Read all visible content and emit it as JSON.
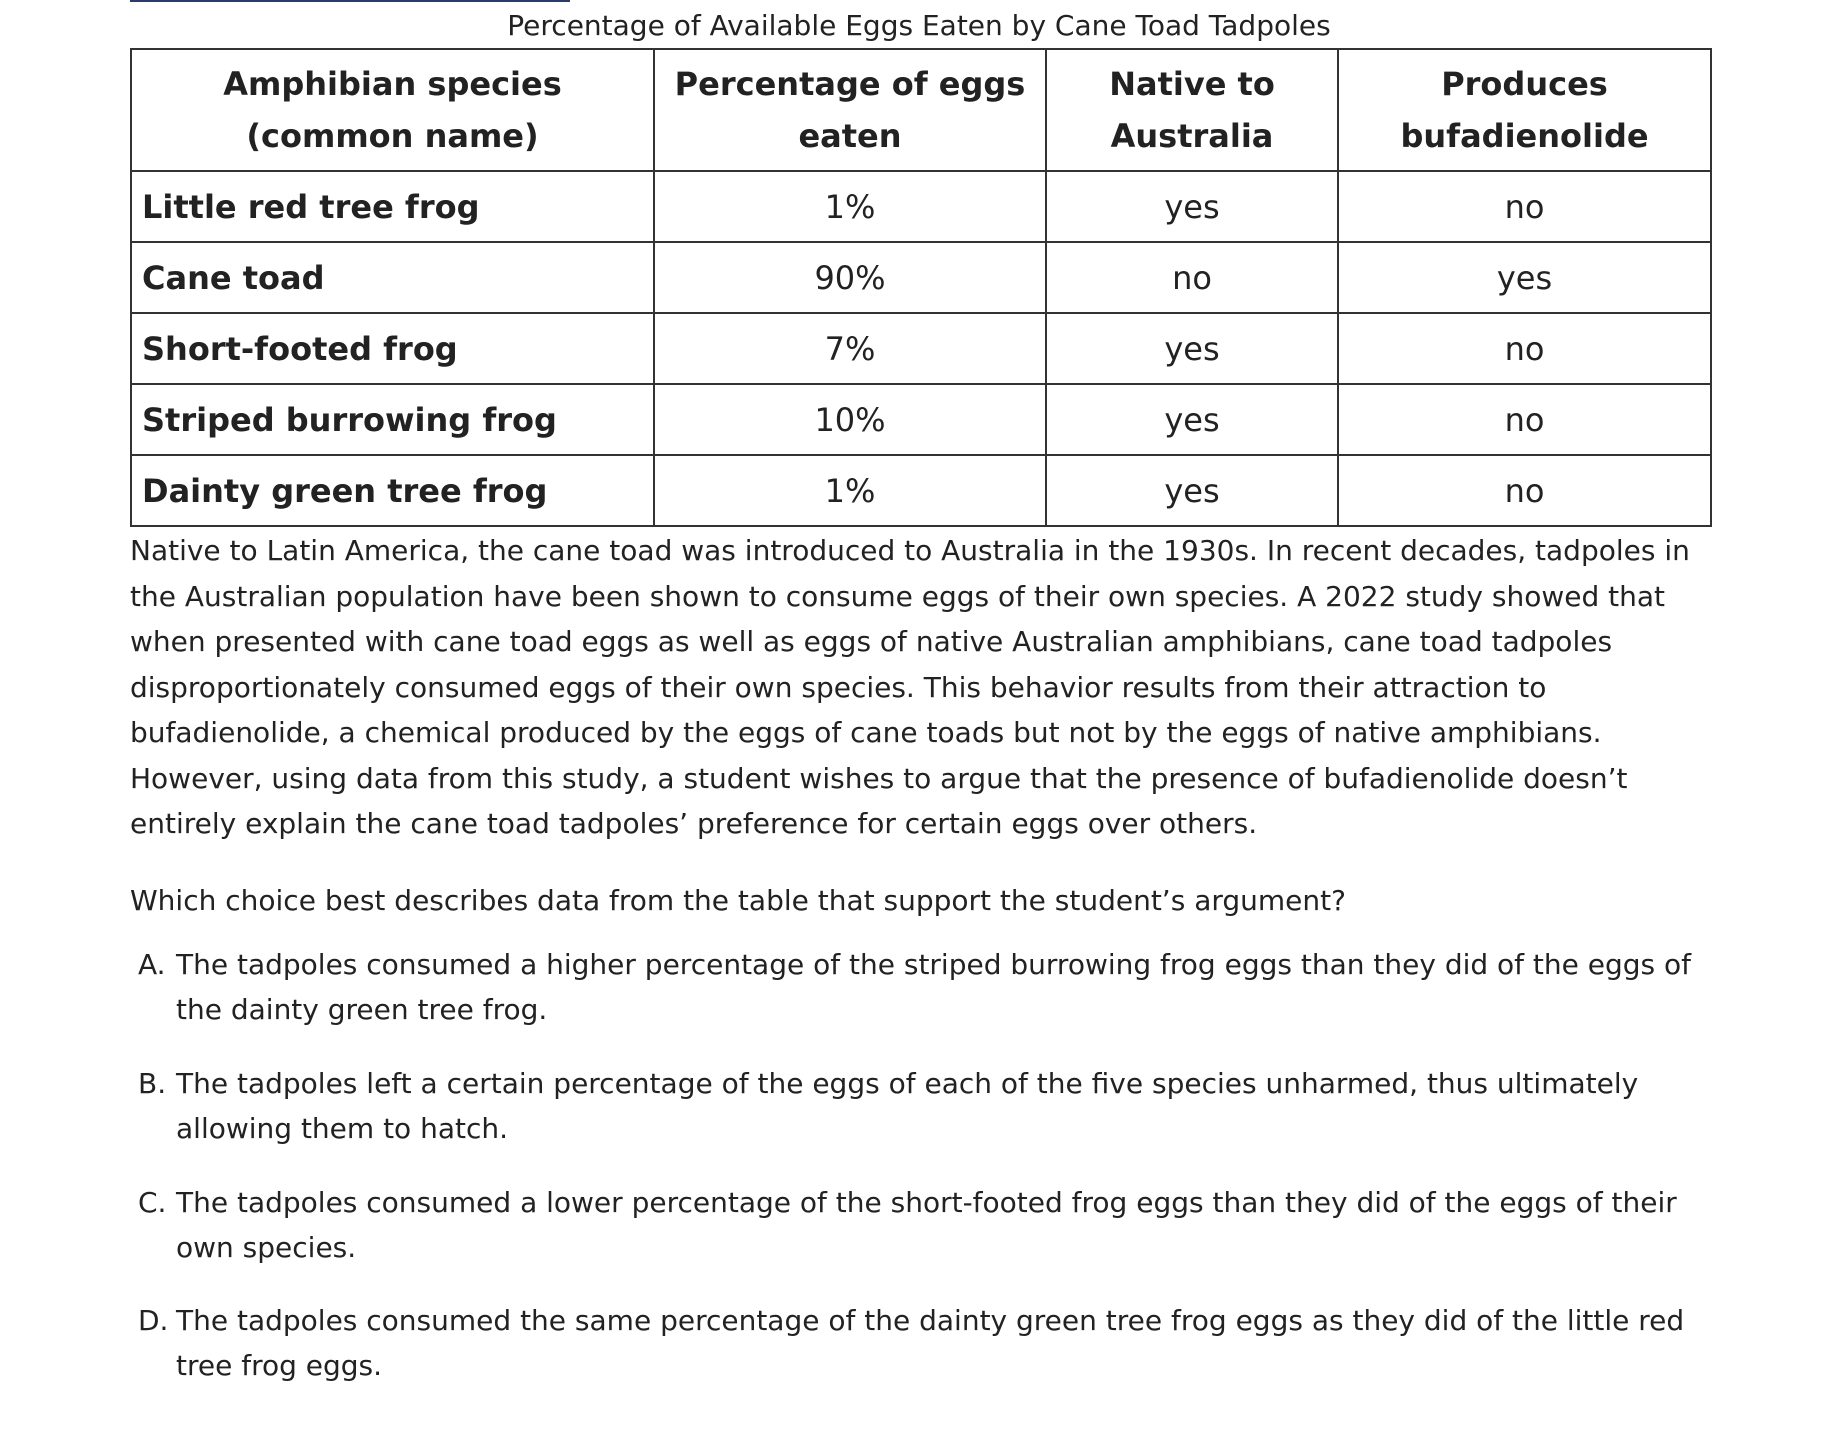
{
  "table": {
    "caption": "Percentage of Available Eggs Eaten by Cane Toad Tadpoles",
    "headers": [
      "Amphibian species (common name)",
      "Percentage of eggs eaten",
      "Native to Australia",
      "Produces bufadienolide"
    ],
    "rows": [
      [
        "Little red tree frog",
        "1%",
        "yes",
        "no"
      ],
      [
        "Cane toad",
        "90%",
        "no",
        "yes"
      ],
      [
        "Short-footed frog",
        "7%",
        "yes",
        "no"
      ],
      [
        "Striped burrowing frog",
        "10%",
        "yes",
        "no"
      ],
      [
        "Dainty green tree frog",
        "1%",
        "yes",
        "no"
      ]
    ]
  },
  "passage": "Native to Latin America, the cane toad was introduced to Australia in the 1930s. In recent decades, tadpoles in the Australian population have been shown to consume eggs of their own species. A 2022 study showed that when presented with cane toad eggs as well as eggs of native Australian amphibians, cane toad tadpoles disproportionately consumed eggs of their own species. This behavior results from their attraction to bufadienolide, a chemical produced by the eggs of cane toads but not by the eggs of native amphibians. However, using data from this study, a student wishes to argue that the presence of bufadienolide doesn’t entirely explain the cane toad tadpoles’ preference for certain eggs over others.",
  "question": "Which choice best describes data from the table that support the student’s argument?",
  "choices": [
    {
      "letter": "A.",
      "text": "The tadpoles consumed a higher percentage of the striped burrowing frog eggs than they did of the eggs of the dainty green tree frog."
    },
    {
      "letter": "B.",
      "text": "The tadpoles left a certain percentage of the eggs of each of the five species unharmed, thus ultimately allowing them to hatch."
    },
    {
      "letter": "C.",
      "text": "The tadpoles consumed a lower percentage of the short-footed frog eggs than they did of the eggs of their own species."
    },
    {
      "letter": "D.",
      "text": "The tadpoles consumed the same percentage of the dainty green tree frog eggs as they did of the little red tree frog eggs."
    }
  ]
}
